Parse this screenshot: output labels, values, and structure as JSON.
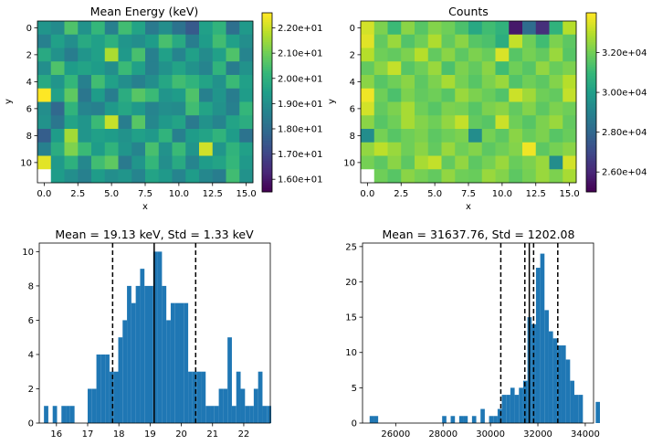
{
  "chart_data": [
    {
      "type": "heatmap",
      "title": "Mean Energy (keV)",
      "xlabel": "x",
      "ylabel": "y",
      "xticks": [
        "0.0",
        "2.5",
        "5.0",
        "7.5",
        "10.0",
        "12.5",
        "15.0"
      ],
      "yticks": [
        "0",
        "2",
        "4",
        "6",
        "8",
        "10"
      ],
      "colorbar_ticks": [
        "1.60e+01",
        "1.70e+01",
        "1.80e+01",
        "1.90e+01",
        "2.00e+01",
        "2.10e+01",
        "2.20e+01"
      ],
      "colorbar_tick_values": [
        16,
        17,
        18,
        19,
        20,
        21,
        22
      ],
      "vmin": 15.5,
      "vmax": 22.6,
      "colormap": "viridis",
      "grid": [
        [
          19.2,
          18.9,
          20.6,
          19.1,
          20.2,
          18.6,
          20.4,
          19.6,
          18.4,
          19.0,
          18.2,
          17.5,
          19.5,
          20.1,
          18.1,
          19.3
        ],
        [
          18.6,
          19.5,
          19.0,
          19.8,
          19.5,
          20.0,
          19.2,
          19.0,
          19.4,
          20.5,
          19.8,
          18.5,
          19.4,
          20.4,
          19.5,
          19.0
        ],
        [
          19.8,
          19.1,
          18.5,
          19.2,
          19.5,
          21.7,
          19.3,
          20.5,
          18.6,
          19.5,
          18.7,
          19.5,
          18.9,
          19.5,
          20.6,
          18.7
        ],
        [
          19.0,
          20.6,
          19.4,
          19.6,
          19.4,
          19.0,
          20.3,
          19.5,
          18.6,
          19.1,
          19.6,
          19.1,
          18.7,
          20.1,
          18.5,
          19.1
        ],
        [
          19.8,
          19.2,
          20.2,
          18.6,
          20.4,
          19.5,
          19.0,
          18.6,
          19.0,
          19.7,
          20.4,
          20.1,
          19.6,
          19.1,
          20.3,
          19.5
        ],
        [
          22.6,
          19.5,
          20.8,
          18.3,
          19.4,
          18.5,
          19.9,
          20.7,
          20.3,
          19.2,
          19.4,
          20.6,
          18.6,
          19.2,
          18.5,
          19.4
        ],
        [
          19.0,
          17.9,
          20.1,
          18.7,
          18.6,
          19.3,
          19.7,
          19.3,
          18.7,
          19.0,
          18.9,
          20.4,
          19.6,
          19.1,
          18.6,
          20.2
        ],
        [
          19.1,
          18.3,
          19.6,
          19.2,
          20.3,
          22.0,
          18.5,
          20.7,
          18.8,
          19.3,
          19.6,
          18.4,
          19.1,
          18.7,
          19.6,
          19.9
        ],
        [
          17.6,
          19.4,
          21.6,
          19.2,
          19.5,
          19.4,
          19.1,
          19.5,
          19.3,
          20.1,
          18.6,
          19.4,
          19.6,
          20.1,
          19.4,
          18.2
        ],
        [
          18.6,
          19.9,
          21.2,
          20.3,
          19.4,
          20.1,
          19.2,
          18.7,
          20.5,
          19.1,
          20.3,
          19.2,
          22.1,
          19.2,
          20.1,
          19.5
        ],
        [
          22.3,
          19.3,
          20.0,
          18.8,
          20.4,
          20.8,
          18.4,
          19.2,
          20.2,
          19.0,
          19.8,
          18.7,
          19.4,
          19.6,
          20.2,
          19.3
        ],
        [
          null,
          19.4,
          19.0,
          18.6,
          19.4,
          19.0,
          19.2,
          18.7,
          19.6,
          19.3,
          18.7,
          19.4,
          18.8,
          18.5,
          20.4,
          19.1
        ]
      ]
    },
    {
      "type": "heatmap",
      "title": "Counts",
      "xlabel": "x",
      "ylabel": "y",
      "xticks": [
        "0.0",
        "2.5",
        "5.0",
        "7.5",
        "10.0",
        "12.5",
        "15.0"
      ],
      "yticks": [
        "0",
        "2",
        "4",
        "6",
        "8",
        "10"
      ],
      "colorbar_ticks": [
        "2.60e+04",
        "2.80e+04",
        "3.00e+04",
        "3.20e+04"
      ],
      "colorbar_tick_values": [
        26000,
        28000,
        30000,
        32000
      ],
      "vmin": 25000,
      "vmax": 34000,
      "colormap": "viridis",
      "grid": [
        [
          33400,
          32200,
          31100,
          32400,
          31600,
          32300,
          32000,
          31400,
          30400,
          31200,
          30800,
          25600,
          28200,
          26200,
          30800,
          33000
        ],
        [
          33600,
          31800,
          32600,
          31500,
          32000,
          32900,
          31800,
          32400,
          31600,
          31400,
          30600,
          33200,
          32000,
          31200,
          32200,
          31700
        ],
        [
          33000,
          32000,
          31800,
          32200,
          33000,
          31800,
          32400,
          31700,
          32200,
          31900,
          33500,
          31600,
          32100,
          31800,
          32600,
          31600
        ],
        [
          31800,
          32400,
          33200,
          31600,
          32000,
          32600,
          31400,
          32200,
          31800,
          32400,
          31200,
          32000,
          31600,
          32500,
          31900,
          32200
        ],
        [
          32400,
          31600,
          32000,
          32400,
          31700,
          32200,
          32800,
          32100,
          31600,
          32200,
          32600,
          31500,
          32000,
          31700,
          32300,
          33000
        ],
        [
          33800,
          32000,
          31400,
          32200,
          31800,
          32000,
          31600,
          32600,
          32200,
          31900,
          31500,
          33300,
          32700,
          32000,
          31800,
          33200
        ],
        [
          33400,
          31800,
          32200,
          32800,
          32000,
          31600,
          32200,
          32100,
          31600,
          32200,
          32400,
          31800,
          32300,
          31700,
          32200,
          32000
        ],
        [
          32400,
          31600,
          32000,
          32800,
          32300,
          32000,
          32500,
          33200,
          31800,
          31600,
          33300,
          32000,
          31600,
          32200,
          32600,
          31800
        ],
        [
          29400,
          32100,
          31600,
          32000,
          32200,
          31700,
          32000,
          32200,
          29400,
          32100,
          31700,
          32400,
          31900,
          32200,
          31600,
          31900
        ],
        [
          32500,
          33100,
          32600,
          32000,
          32400,
          31800,
          32600,
          32000,
          32300,
          31700,
          32000,
          32300,
          33800,
          31700,
          32100,
          32400
        ],
        [
          32100,
          31700,
          32400,
          31700,
          32800,
          33200,
          31800,
          32500,
          31700,
          32100,
          32600,
          31900,
          32200,
          32600,
          29400,
          33400
        ],
        [
          null,
          32000,
          31600,
          32400,
          32100,
          31800,
          32500,
          32000,
          31900,
          32600,
          32300,
          31700,
          32100,
          32600,
          32200,
          32800
        ]
      ]
    },
    {
      "type": "bar",
      "subtype": "histogram",
      "title": "Mean = 19.13 keV, Std = 1.33 keV",
      "xlabel": "",
      "ylabel": "",
      "xlim": [
        15.45,
        22.85
      ],
      "ylim": [
        0,
        10.5
      ],
      "xticks": [
        16,
        17,
        18,
        19,
        20,
        21,
        22
      ],
      "yticks": [
        0,
        2,
        4,
        6,
        8,
        10
      ],
      "bin_start": 15.6,
      "bin_width": 0.14,
      "counts": [
        1,
        0,
        1,
        0,
        1,
        1,
        1,
        0,
        0,
        0,
        2,
        2,
        4,
        4,
        4,
        3,
        3,
        5,
        6,
        8,
        7,
        8,
        9,
        8,
        8,
        10,
        10,
        8,
        6,
        7,
        7,
        7,
        7,
        3,
        3,
        3,
        3,
        1,
        1,
        1,
        2,
        2,
        5,
        1,
        3,
        2,
        1,
        1,
        2,
        3,
        1,
        1
      ],
      "bar_color": "#1f77b4",
      "vlines": [
        {
          "x": 19.13,
          "style": "solid"
        },
        {
          "x": 17.8,
          "style": "dashed"
        },
        {
          "x": 20.46,
          "style": "dashed"
        }
      ]
    },
    {
      "type": "bar",
      "subtype": "histogram",
      "title": "Mean = 31637.76, Std = 1202.08",
      "xlabel": "",
      "ylabel": "",
      "xlim": [
        24600,
        34350
      ],
      "ylim": [
        0,
        25.5
      ],
      "xticks": [
        26000,
        28000,
        30000,
        32000,
        34000
      ],
      "yticks": [
        0,
        5,
        10,
        15,
        20,
        25
      ],
      "bin_start": 24900,
      "bin_width": 180,
      "counts": [
        1,
        1,
        0,
        0,
        0,
        0,
        0,
        0,
        0,
        0,
        0,
        0,
        0,
        0,
        0,
        0,
        0,
        1,
        0,
        1,
        0,
        1,
        1,
        0,
        1,
        0,
        2,
        0,
        1,
        1,
        2,
        4,
        4,
        5,
        4,
        5,
        6,
        15,
        14,
        22,
        24,
        16,
        13,
        12,
        11,
        11,
        9,
        6,
        4,
        4,
        0,
        0,
        0,
        3
      ],
      "bar_color": "#1f77b4",
      "vlines": [
        {
          "x": 31637.76,
          "style": "solid"
        },
        {
          "x": 30435.68,
          "style": "dashed"
        },
        {
          "x": 32839.84,
          "style": "dashed"
        },
        {
          "x": 31450,
          "style": "dashed"
        },
        {
          "x": 31820,
          "style": "dashed"
        }
      ]
    }
  ]
}
